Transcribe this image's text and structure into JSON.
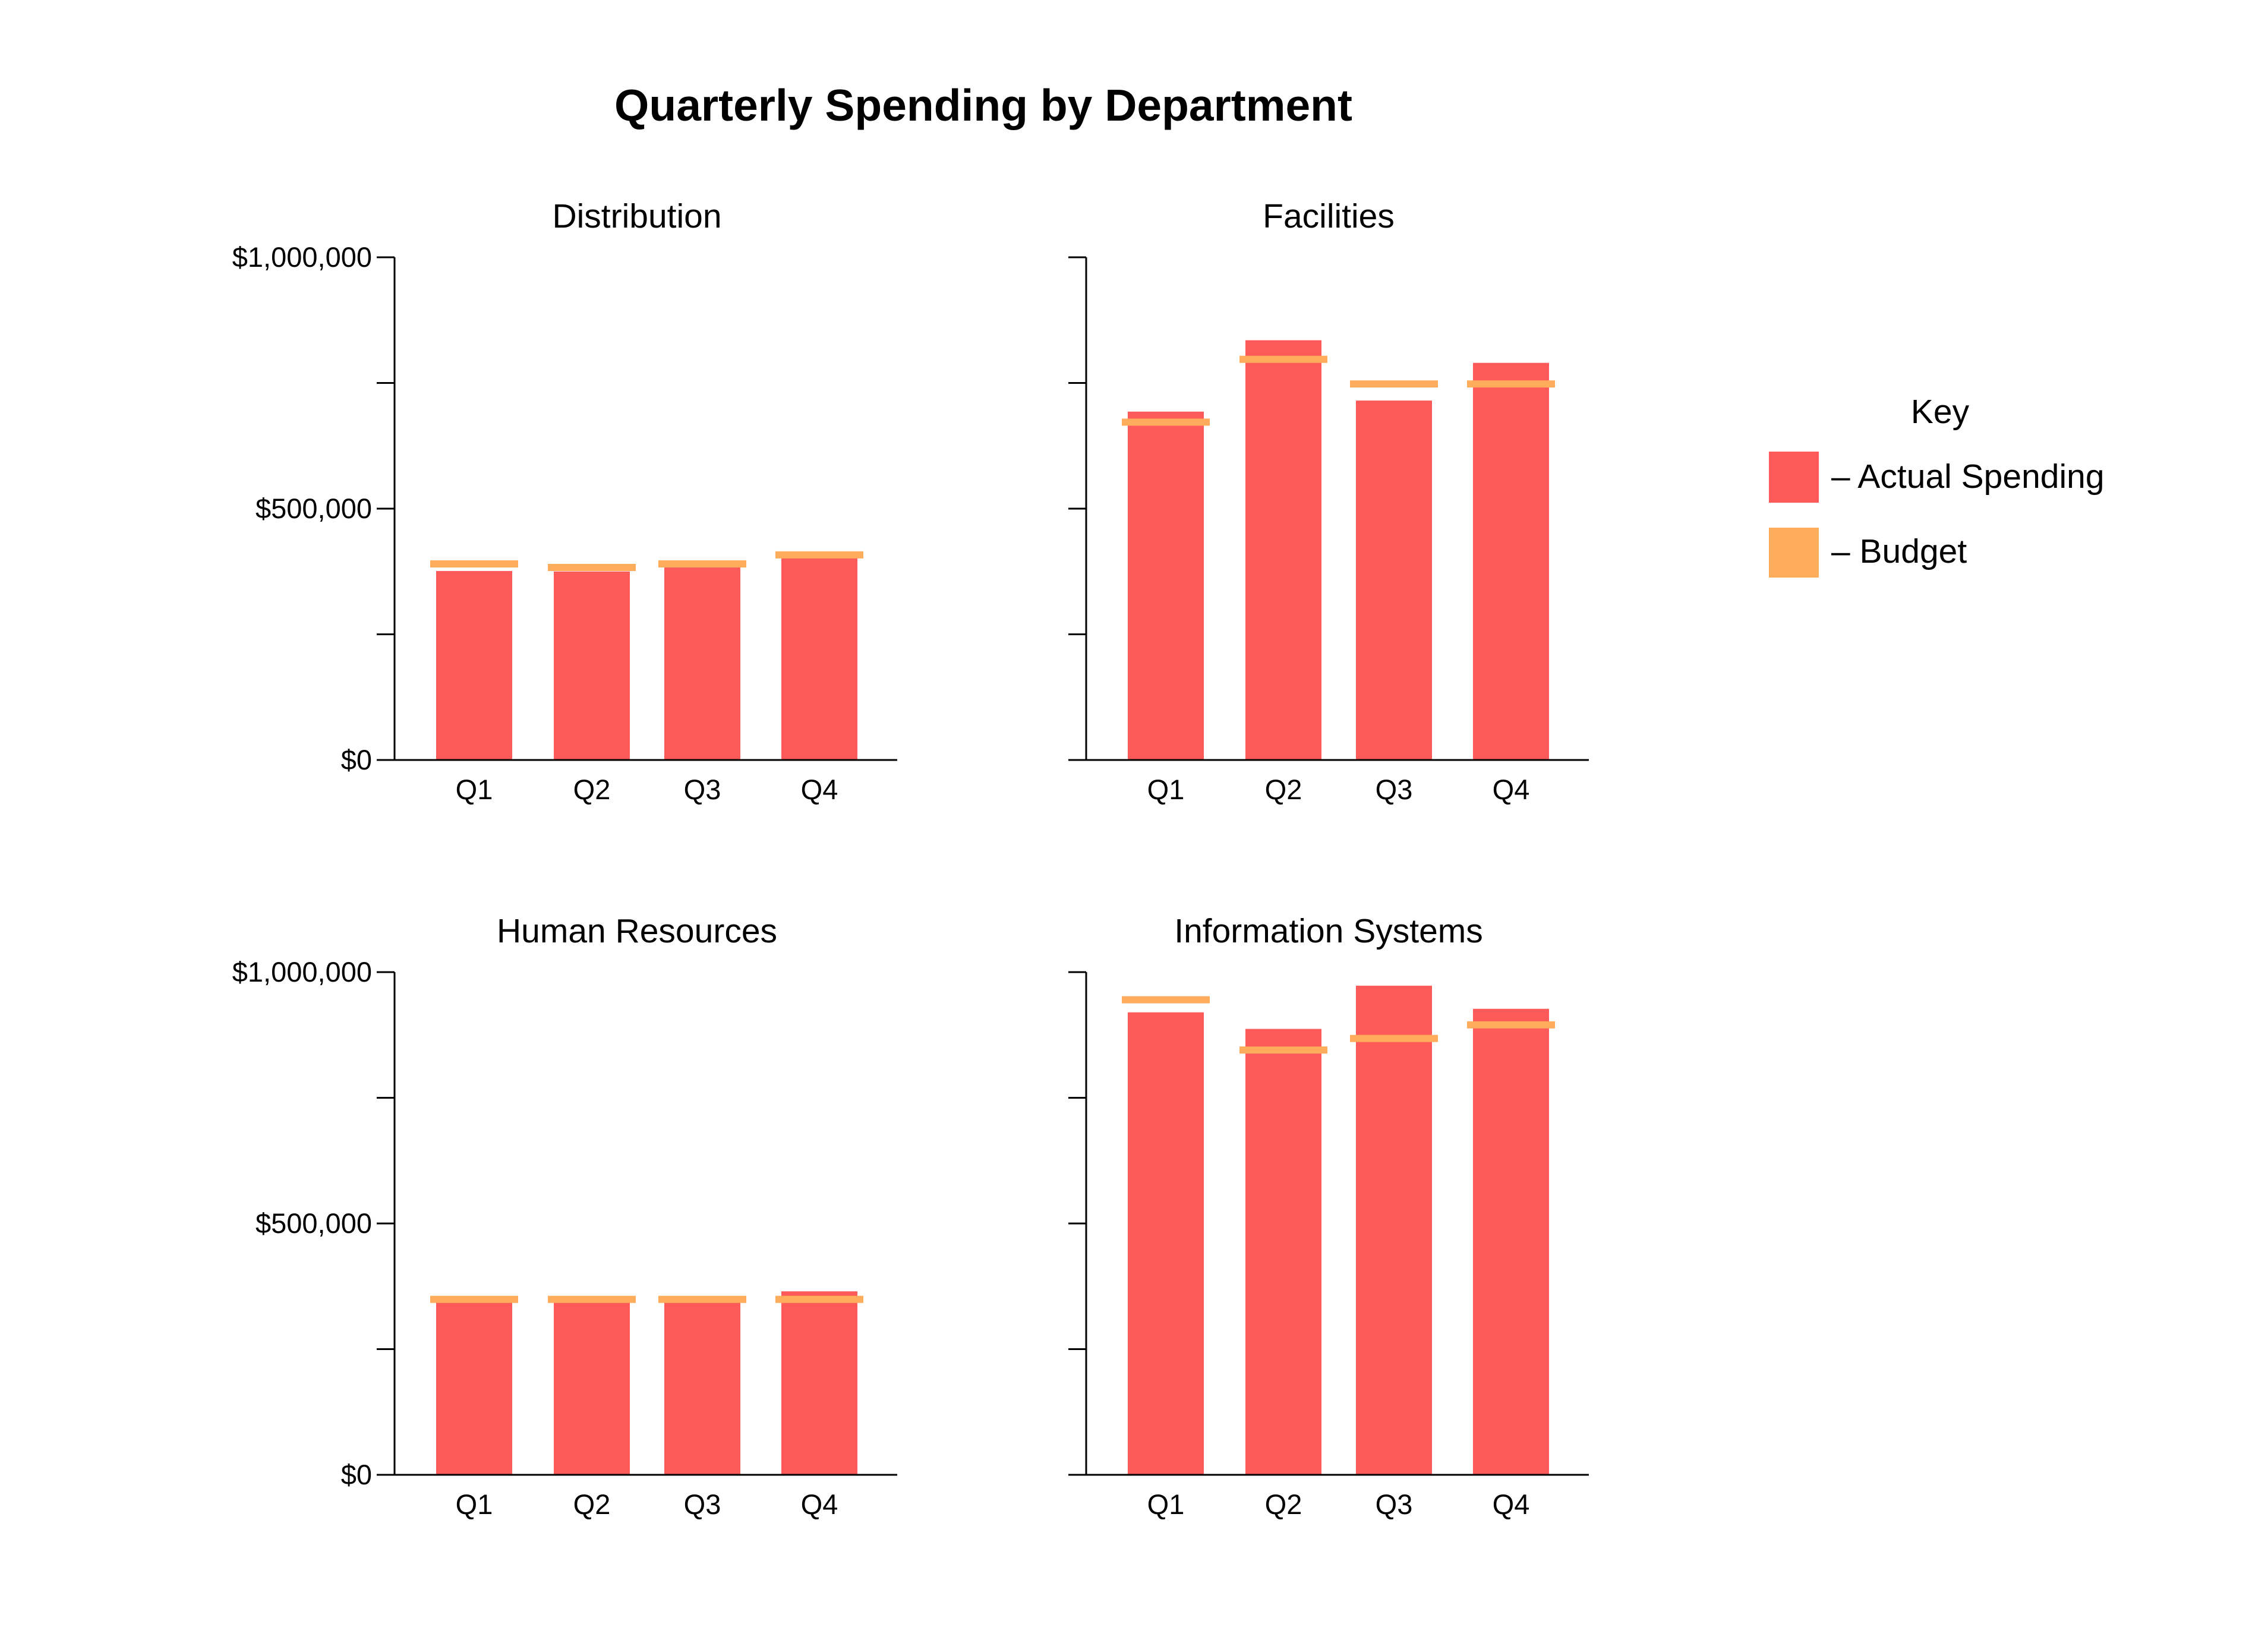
{
  "chart_data": {
    "type": "bar",
    "title": "Quarterly Spending by Department",
    "categories": [
      "Q1",
      "Q2",
      "Q3",
      "Q4"
    ],
    "ylim": [
      0,
      1000000
    ],
    "y_ticks": [
      {
        "value": 0,
        "label": "$0"
      },
      {
        "value": 250000,
        "label": ""
      },
      {
        "value": 500000,
        "label": "$500,000"
      },
      {
        "value": 750000,
        "label": ""
      },
      {
        "value": 1000000,
        "label": "$1,000,000"
      }
    ],
    "grid": false,
    "legend_position": "right",
    "legend": {
      "title": "Key",
      "items": [
        {
          "label": "– Actual Spending",
          "color": "#FF5A5A",
          "kind": "bar"
        },
        {
          "label": "– Budget",
          "color": "#FFAC5C",
          "kind": "line"
        }
      ]
    },
    "panels": [
      {
        "title": "Distribution",
        "show_y_labels": true,
        "series": [
          {
            "name": "Actual Spending",
            "values": [
              376000,
              375000,
              386000,
              405000
            ]
          },
          {
            "name": "Budget",
            "values": [
              390000,
              383000,
              390000,
              408000
            ]
          }
        ]
      },
      {
        "title": "Facilities",
        "show_y_labels": false,
        "series": [
          {
            "name": "Actual Spending",
            "values": [
              693000,
              835000,
              715000,
              790000
            ]
          },
          {
            "name": "Budget",
            "values": [
              672000,
              797000,
              748000,
              748000
            ]
          }
        ]
      },
      {
        "title": "Human Resources",
        "show_y_labels": true,
        "series": [
          {
            "name": "Actual Spending",
            "values": [
              352000,
              352000,
              352000,
              365000
            ]
          },
          {
            "name": "Budget",
            "values": [
              349000,
              349000,
              349000,
              349000
            ]
          }
        ]
      },
      {
        "title": "Information Systems",
        "show_y_labels": false,
        "series": [
          {
            "name": "Actual Spending",
            "values": [
              920000,
              887000,
              973000,
              927000
            ]
          },
          {
            "name": "Budget",
            "values": [
              945000,
              845000,
              868000,
              895000
            ]
          }
        ]
      }
    ]
  }
}
